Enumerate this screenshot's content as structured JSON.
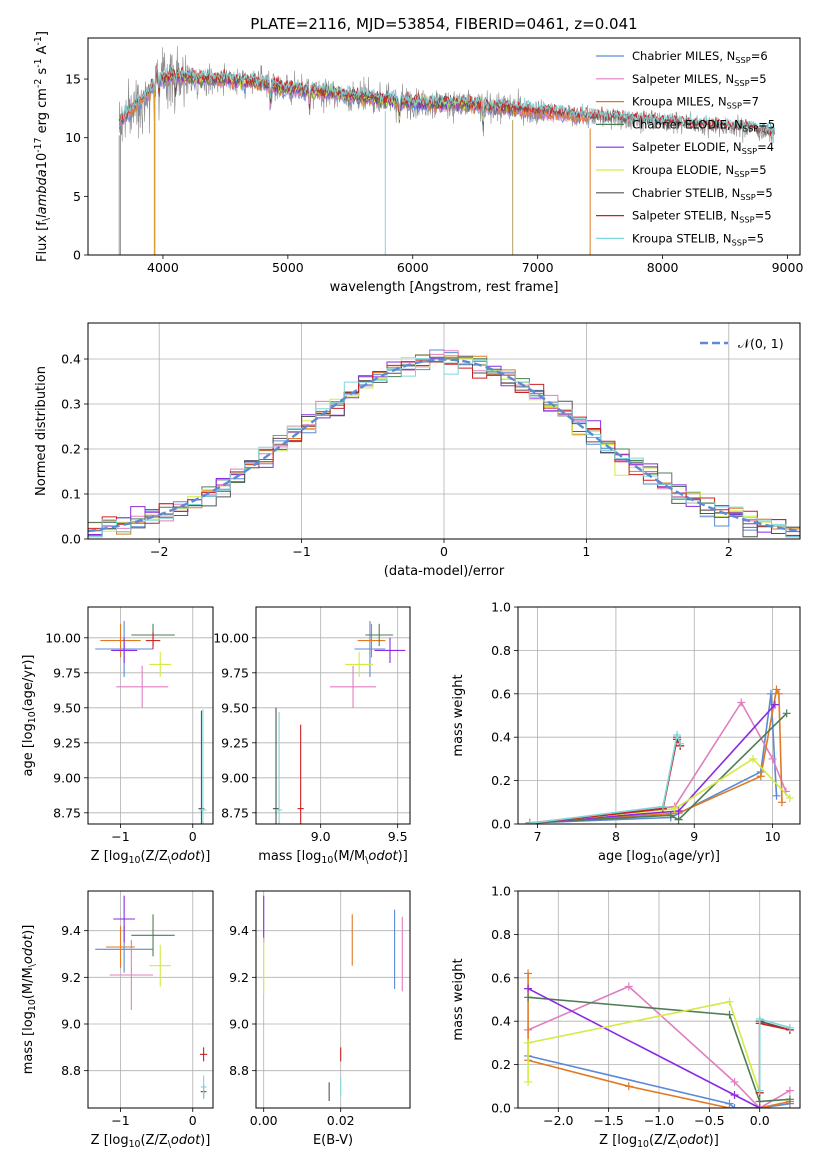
{
  "title": "PLATE=2116, MJD=53854, FIBERID=0461, z=0.041",
  "colors": {
    "Chabrier MILES": "#5b8ad6",
    "Salpeter MILES": "#e07fc0",
    "Kroupa MILES": "#e07a24",
    "Chabrier ELODIE": "#4e7d55",
    "Salpeter ELODIE": "#8a2be2",
    "Kroupa ELODIE": "#d4ea44",
    "Chabrier STELIB": "#555555",
    "Salpeter STELIB": "#cc2020",
    "Kroupa STELIB": "#7fd6d9",
    "grid": "#b0b0b0",
    "normal_curve": "#5b8ad6"
  },
  "chart_data": [
    {
      "id": "spectrum",
      "type": "line",
      "title": "PLATE=2116, MJD=53854, FIBERID=0461, z=0.041",
      "xlabel": "wavelength [Angstrom, rest frame]",
      "ylabel": "Flux [f$_\\lambda$10$^{-17}$ erg cm$^{-2}$ s$^{-1}$ A$^{-1}$]",
      "xlim": [
        3400,
        9100
      ],
      "ylim": [
        0,
        18.5
      ],
      "xticks": [
        4000,
        5000,
        6000,
        7000,
        8000,
        9000
      ],
      "yticks": [
        0,
        5,
        10,
        15
      ],
      "grid": false,
      "legend_position": "upper right",
      "legend": [
        "Chabrier MILES, N$_{SSP}$=6",
        "Salpeter MILES, N$_{SSP}$=5",
        "Kroupa MILES, N$_{SSP}$=7",
        "Chabrier ELODIE, N$_{SSP}$=5",
        "Salpeter ELODIE, N$_{SSP}$=4",
        "Kroupa ELODIE, N$_{SSP}$=5",
        "Chabrier STELIB, N$_{SSP}$=5",
        "Salpeter STELIB, N$_{SSP}$=5",
        "Kroupa STELIB, N$_{SSP}$=5"
      ],
      "continuum": [
        [
          3650,
          11.2
        ],
        [
          3750,
          12.5
        ],
        [
          3900,
          14.0
        ],
        [
          3950,
          15.5
        ],
        [
          4000,
          15.0
        ],
        [
          4100,
          15.3
        ],
        [
          4300,
          15.0
        ],
        [
          4500,
          15.0
        ],
        [
          4800,
          14.6
        ],
        [
          5000,
          14.2
        ],
        [
          5200,
          14.0
        ],
        [
          5500,
          13.6
        ],
        [
          6000,
          13.0
        ],
        [
          6500,
          12.8
        ],
        [
          7000,
          12.3
        ],
        [
          7400,
          11.8
        ],
        [
          7800,
          11.5
        ],
        [
          8200,
          11.2
        ],
        [
          8700,
          10.8
        ],
        [
          8900,
          10.3
        ]
      ],
      "model_ranges": {
        "MILES": [
          3540,
          7410
        ],
        "ELODIE": [
          3900,
          6800
        ],
        "STELIB": [
          3200,
          9300
        ]
      },
      "absorption_lines": [
        3933,
        3968,
        4102,
        4861,
        5175,
        5893,
        6563
      ],
      "edge_drops": [
        3650,
        3930,
        5780,
        6800,
        7420
      ]
    },
    {
      "id": "residuals",
      "type": "histogram",
      "xlabel": "(data-model)/error",
      "ylabel": "Normed distribution",
      "xlim": [
        -2.5,
        2.5
      ],
      "ylim": [
        0,
        0.48
      ],
      "xticks": [
        -2,
        -1,
        0,
        1,
        2
      ],
      "yticks": [
        0.0,
        0.1,
        0.2,
        0.3,
        0.4
      ],
      "grid": true,
      "legend": [
        "$\\mathcal{N}(0, 1)$"
      ],
      "legend_position": "upper right",
      "bin_width": 0.1,
      "normal_mean": 0,
      "normal_sigma": 1
    },
    {
      "id": "age_vs_Z",
      "type": "scatter",
      "xlabel": "Z [log$_{10}$(Z/Z$_\\odot$)]",
      "ylabel": "age  [log$_{10}$(age/yr)]",
      "xlim": [
        -1.45,
        0.28
      ],
      "ylim": [
        8.67,
        10.22
      ],
      "xticks": [
        -1,
        0
      ],
      "yticks": [
        8.75,
        9.0,
        9.25,
        9.5,
        9.75,
        10.0
      ],
      "grid": true,
      "points": [
        {
          "model": "Chabrier MILES",
          "x": -0.95,
          "y": 9.92,
          "xerr": 0.4,
          "yerr": 0.2
        },
        {
          "model": "Salpeter MILES",
          "x": -0.7,
          "y": 9.65,
          "xerr": 0.36,
          "yerr": 0.15
        },
        {
          "model": "Kroupa MILES",
          "x": -1.0,
          "y": 9.98,
          "xerr": 0.28,
          "yerr": 0.12
        },
        {
          "model": "Chabrier ELODIE",
          "x": -0.55,
          "y": 10.02,
          "xerr": 0.3,
          "yerr": 0.08
        },
        {
          "model": "Salpeter ELODIE",
          "x": -0.95,
          "y": 9.91,
          "xerr": 0.18,
          "yerr": 0.09
        },
        {
          "model": "Kroupa ELODIE",
          "x": -0.45,
          "y": 9.81,
          "xerr": 0.15,
          "yerr": 0.09
        },
        {
          "model": "Chabrier STELIB",
          "x": 0.12,
          "y": 8.78,
          "xerr": 0.04,
          "yerr": 0.7
        },
        {
          "model": "Salpeter STELIB",
          "x": -0.55,
          "y": 9.98,
          "xerr": 0.1,
          "yerr": 0.06
        },
        {
          "model": "Kroupa STELIB",
          "x": 0.14,
          "y": 8.77,
          "xerr": 0.05,
          "yerr": 0.72
        }
      ]
    },
    {
      "id": "age_vs_mass",
      "type": "scatter",
      "xlabel": "mass [log$_{10}$(M/M$_\\odot$)]",
      "ylabel": "",
      "xlim": [
        8.58,
        9.58
      ],
      "ylim": [
        8.67,
        10.22
      ],
      "xticks": [
        9.0,
        9.5
      ],
      "yticks": [
        8.75,
        9.0,
        9.25,
        9.5,
        9.75,
        10.0
      ],
      "grid": true,
      "points": [
        {
          "model": "Chabrier MILES",
          "x": 9.32,
          "y": 9.92,
          "xerr": 0.1,
          "yerr": 0.2
        },
        {
          "model": "Salpeter MILES",
          "x": 9.21,
          "y": 9.65,
          "xerr": 0.15,
          "yerr": 0.15
        },
        {
          "model": "Kroupa MILES",
          "x": 9.33,
          "y": 9.98,
          "xerr": 0.09,
          "yerr": 0.12
        },
        {
          "model": "Chabrier ELODIE",
          "x": 9.38,
          "y": 10.02,
          "xerr": 0.09,
          "yerr": 0.08
        },
        {
          "model": "Salpeter ELODIE",
          "x": 9.45,
          "y": 9.91,
          "xerr": 0.1,
          "yerr": 0.09
        },
        {
          "model": "Kroupa ELODIE",
          "x": 9.25,
          "y": 9.81,
          "xerr": 0.09,
          "yerr": 0.09
        },
        {
          "model": "Chabrier STELIB",
          "x": 8.71,
          "y": 8.78,
          "xerr": 0.02,
          "yerr": 0.72
        },
        {
          "model": "Salpeter STELIB",
          "x": 8.87,
          "y": 8.78,
          "xerr": 0.02,
          "yerr": 0.6
        },
        {
          "model": "Kroupa STELIB",
          "x": 8.73,
          "y": 8.77,
          "xerr": 0.02,
          "yerr": 0.7
        }
      ]
    },
    {
      "id": "weight_vs_age",
      "type": "line",
      "xlabel": "age  [log$_{10}$(age/yr)]",
      "ylabel": "mass weight",
      "xlim": [
        6.75,
        10.35
      ],
      "ylim": [
        0,
        1.0
      ],
      "xticks": [
        7,
        8,
        9,
        10
      ],
      "yticks": [
        0.0,
        0.2,
        0.4,
        0.6,
        0.8,
        1.0
      ],
      "grid": true,
      "series": [
        {
          "model": "Chabrier MILES",
          "x": [
            6.9,
            8.7,
            9.85,
            9.98,
            10.05
          ],
          "y": [
            0.005,
            0.03,
            0.24,
            0.6,
            0.13
          ]
        },
        {
          "model": "Salpeter MILES",
          "x": [
            6.9,
            8.75,
            9.6,
            10.0,
            10.17
          ],
          "y": [
            0.005,
            0.08,
            0.56,
            0.3,
            0.15
          ]
        },
        {
          "model": "Kroupa MILES",
          "x": [
            6.9,
            8.8,
            9.85,
            10.05,
            10.08,
            10.12
          ],
          "y": [
            0.005,
            0.05,
            0.22,
            0.62,
            0.6,
            0.1
          ]
        },
        {
          "model": "Chabrier ELODIE",
          "x": [
            6.9,
            8.7,
            8.8,
            10.18
          ],
          "y": [
            0.005,
            0.04,
            0.02,
            0.51
          ]
        },
        {
          "model": "Salpeter ELODIE",
          "x": [
            6.9,
            8.8,
            10.03
          ],
          "y": [
            0.005,
            0.06,
            0.55
          ]
        },
        {
          "model": "Kroupa ELODIE",
          "x": [
            6.9,
            8.75,
            9.75,
            10.22
          ],
          "y": [
            0.005,
            0.07,
            0.3,
            0.12
          ]
        },
        {
          "model": "Chabrier STELIB",
          "x": [
            6.9,
            8.6,
            8.78,
            8.82
          ],
          "y": [
            0.003,
            0.07,
            0.4,
            0.36
          ]
        },
        {
          "model": "Salpeter STELIB",
          "x": [
            6.9,
            8.6,
            8.78,
            8.82
          ],
          "y": [
            0.003,
            0.07,
            0.39,
            0.36
          ]
        },
        {
          "model": "Kroupa STELIB",
          "x": [
            6.9,
            8.6,
            8.78,
            8.82
          ],
          "y": [
            0.003,
            0.08,
            0.41,
            0.37
          ]
        }
      ]
    },
    {
      "id": "mass_vs_Z",
      "type": "scatter",
      "xlabel": "Z [log$_{10}$(Z/Z$_\\odot$)]",
      "ylabel": "mass [log$_{10}$(M/M$_\\odot$)]",
      "xlim": [
        -1.45,
        0.28
      ],
      "ylim": [
        8.64,
        9.57
      ],
      "xticks": [
        -1,
        0
      ],
      "yticks": [
        8.8,
        9.0,
        9.2,
        9.4
      ],
      "grid": true,
      "points": [
        {
          "model": "Chabrier MILES",
          "x": -0.95,
          "y": 9.32,
          "xerr": 0.4,
          "yerr": 0.1
        },
        {
          "model": "Salpeter MILES",
          "x": -0.85,
          "y": 9.21,
          "xerr": 0.3,
          "yerr": 0.15
        },
        {
          "model": "Kroupa MILES",
          "x": -1.0,
          "y": 9.33,
          "xerr": 0.2,
          "yerr": 0.09
        },
        {
          "model": "Chabrier ELODIE",
          "x": -0.55,
          "y": 9.38,
          "xerr": 0.3,
          "yerr": 0.09
        },
        {
          "model": "Salpeter ELODIE",
          "x": -0.95,
          "y": 9.45,
          "xerr": 0.15,
          "yerr": 0.1
        },
        {
          "model": "Kroupa ELODIE",
          "x": -0.45,
          "y": 9.25,
          "xerr": 0.15,
          "yerr": 0.09
        },
        {
          "model": "Chabrier STELIB",
          "x": 0.15,
          "y": 8.71,
          "xerr": 0.04,
          "yerr": 0.03
        },
        {
          "model": "Salpeter STELIB",
          "x": 0.15,
          "y": 8.87,
          "xerr": 0.05,
          "yerr": 0.03
        },
        {
          "model": "Kroupa STELIB",
          "x": 0.15,
          "y": 8.73,
          "xerr": 0.04,
          "yerr": 0.05
        }
      ]
    },
    {
      "id": "mass_vs_EBV",
      "type": "scatter",
      "xlabel": "E(B-V)",
      "ylabel": "",
      "xlim": [
        -0.002,
        0.038
      ],
      "ylim": [
        8.64,
        9.57
      ],
      "xticks": [
        0.0,
        0.02
      ],
      "yticks": [
        8.8,
        9.0,
        9.2,
        9.4
      ],
      "grid": true,
      "points": [
        {
          "model": "Chabrier MILES",
          "x": 0.034,
          "y": 9.32,
          "xerr": 0,
          "yerr": 0.17
        },
        {
          "model": "Salpeter MILES",
          "x": 0.036,
          "y": 9.3,
          "xerr": 0,
          "yerr": 0.16
        },
        {
          "model": "Kroupa MILES",
          "x": 0.023,
          "y": 9.36,
          "xerr": 0,
          "yerr": 0.11
        },
        {
          "model": "Salpeter ELODIE",
          "x": 0.0,
          "y": 9.45,
          "xerr": 0,
          "yerr": 0.1
        },
        {
          "model": "Kroupa ELODIE",
          "x": 0.0,
          "y": 9.25,
          "xerr": 0,
          "yerr": 0.12
        },
        {
          "model": "Chabrier STELIB",
          "x": 0.017,
          "y": 8.71,
          "xerr": 0,
          "yerr": 0.04
        },
        {
          "model": "Salpeter STELIB",
          "x": 0.02,
          "y": 8.87,
          "xerr": 0,
          "yerr": 0.03
        },
        {
          "model": "Kroupa STELIB",
          "x": 0.02,
          "y": 8.73,
          "xerr": 0,
          "yerr": 0.04
        }
      ]
    },
    {
      "id": "weight_vs_Z",
      "type": "line",
      "xlabel": "Z [log$_{10}$(Z/Z$_\\odot$)]",
      "ylabel": "mass weight",
      "xlim": [
        -2.4,
        0.4
      ],
      "ylim": [
        0,
        1.0
      ],
      "xticks": [
        -2.0,
        -1.5,
        -1.0,
        -0.5,
        0.0
      ],
      "yticks": [
        0.0,
        0.2,
        0.4,
        0.6,
        0.8,
        1.0
      ],
      "grid": true,
      "series": [
        {
          "model": "Chabrier MILES",
          "x": [
            -2.3,
            -0.3,
            -0.25,
            0.0,
            0.3
          ],
          "y": [
            0.24,
            0.02,
            0.0,
            0.0,
            0.02
          ]
        },
        {
          "model": "Salpeter MILES",
          "x": [
            -2.3,
            -1.3,
            -0.25,
            0.0,
            0.3
          ],
          "y": [
            0.36,
            0.56,
            0.12,
            0.0,
            0.08
          ]
        },
        {
          "model": "Kroupa MILES",
          "x": [
            -2.3,
            -2.3,
            -1.3,
            -0.3,
            0.0,
            0.3
          ],
          "y": [
            0.62,
            0.22,
            0.1,
            0.0,
            0.0,
            0.03
          ]
        },
        {
          "model": "Chabrier ELODIE",
          "x": [
            -2.3,
            -0.3,
            0.0,
            0.3
          ],
          "y": [
            0.51,
            0.43,
            0.03,
            0.04
          ]
        },
        {
          "model": "Salpeter ELODIE",
          "x": [
            -2.3,
            -0.25,
            0.0
          ],
          "y": [
            0.55,
            0.06,
            0.0
          ]
        },
        {
          "model": "Kroupa ELODIE",
          "x": [
            -2.3,
            -2.3,
            -0.3,
            0.0
          ],
          "y": [
            0.12,
            0.3,
            0.49,
            0.07
          ]
        },
        {
          "model": "Chabrier STELIB",
          "x": [
            0.0,
            0.0,
            0.3
          ],
          "y": [
            0.07,
            0.4,
            0.36
          ]
        },
        {
          "model": "Salpeter STELIB",
          "x": [
            0.0,
            0.0,
            0.3
          ],
          "y": [
            0.07,
            0.39,
            0.36
          ]
        },
        {
          "model": "Kroupa STELIB",
          "x": [
            0.0,
            0.0,
            0.3
          ],
          "y": [
            0.08,
            0.41,
            0.37
          ]
        }
      ]
    }
  ]
}
